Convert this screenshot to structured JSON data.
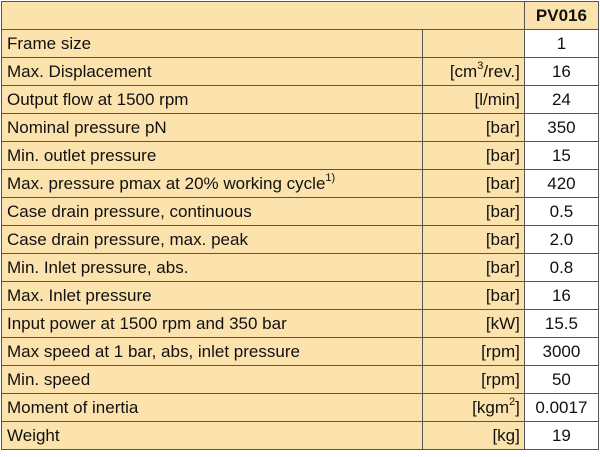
{
  "table": {
    "model": "PV016",
    "rows": [
      {
        "label": "Frame size",
        "unit": "",
        "value": "1"
      },
      {
        "label": "Max. Displacement",
        "unit": "[cm³/rev.]",
        "unit_pre": "[cm",
        "unit_sup": "3",
        "unit_post": "/rev.]",
        "value": "16"
      },
      {
        "label": "Output flow at 1500 rpm",
        "unit": "[l/min]",
        "value": "24"
      },
      {
        "label": "Nominal pressure pN",
        "unit": "[bar]",
        "value": "350"
      },
      {
        "label": "Min. outlet pressure",
        "unit": "[bar]",
        "value": "15"
      },
      {
        "label": "Max. pressure pmax at 20% working cycle",
        "label_sup": "1)",
        "unit": "[bar]",
        "value": "420"
      },
      {
        "label": "Case drain pressure, continuous",
        "unit": "[bar]",
        "value": "0.5"
      },
      {
        "label": "Case drain pressure, max. peak",
        "unit": "[bar]",
        "value": "2.0"
      },
      {
        "label": "Min. Inlet pressure, abs.",
        "unit": "[bar]",
        "value": "0.8"
      },
      {
        "label": "Max. Inlet pressure",
        "unit": "[bar]",
        "value": "16"
      },
      {
        "label": "Input power at 1500 rpm and 350 bar",
        "unit": "[kW]",
        "value": "15.5"
      },
      {
        "label": "Max speed at 1 bar, abs, inlet pressure",
        "unit": "[rpm]",
        "value": "3000"
      },
      {
        "label": "Min. speed",
        "unit": "[rpm]",
        "value": "50"
      },
      {
        "label": "Moment of inertia",
        "unit": "[kgm²]",
        "unit_pre": "[kgm",
        "unit_sup": "2",
        "unit_post": "]",
        "value": "0.0017"
      },
      {
        "label": "Weight",
        "unit": "[kg]",
        "value": "19"
      }
    ]
  }
}
